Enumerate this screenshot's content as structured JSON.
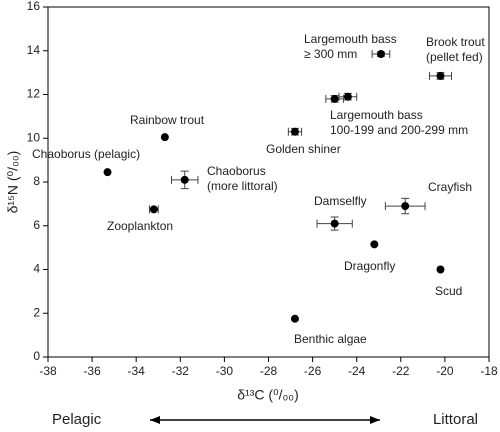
{
  "chart_data": {
    "type": "scatter",
    "x_label": "δ¹³C (⁰/₀₀)",
    "y_label": "δ¹⁵N (⁰/₀₀)",
    "bottom_left": "Pelagic",
    "bottom_right": "Littoral",
    "series": [
      {
        "color": "#000000",
        "x": [
          -35.3,
          -32.7,
          -33.2,
          -31.8,
          -26.8,
          -22.9,
          -20.2,
          -25.0,
          -24.4,
          -25.0,
          -21.8,
          -23.2,
          -20.2,
          -26.8
        ],
        "values": [
          8.45,
          10.05,
          6.75,
          8.1,
          10.3,
          13.85,
          12.85,
          11.8,
          11.9,
          6.1,
          6.9,
          5.15,
          4.0,
          1.75
        ],
        "xerr": [
          null,
          null,
          0.2,
          0.6,
          0.3,
          0.4,
          0.5,
          0.4,
          0.4,
          0.8,
          0.9,
          null,
          null,
          null
        ],
        "yerr": [
          null,
          null,
          null,
          0.4,
          0.15,
          0.1,
          0.15,
          0.15,
          0.15,
          0.3,
          0.35,
          null,
          null,
          null
        ]
      }
    ],
    "annotations": [
      [
        "Chaoborus (pelagic)"
      ],
      [
        "Rainbow trout"
      ],
      [
        "Zooplankton"
      ],
      [
        "Chaoborus",
        "(more littoral)"
      ],
      [
        "Golden shiner"
      ],
      [
        "Largemouth bass",
        "≥ 300 mm"
      ],
      [
        "Brook trout",
        "(pellet fed)"
      ],
      [
        "Largemouth bass",
        "100-199 and 200-299 mm"
      ],
      [
        "Damselfly"
      ],
      [
        "Crayfish"
      ],
      [
        "Dragonfly"
      ],
      [
        "Scud"
      ],
      [
        "Benthic algae"
      ]
    ],
    "xlim": [
      -38,
      -18
    ],
    "ylim": [
      0,
      16
    ],
    "xticks": [
      -38,
      -36,
      -34,
      -32,
      -30,
      -28,
      -26,
      -24,
      -22,
      -20,
      -18
    ],
    "yticks": [
      0,
      2,
      4,
      6,
      8,
      10,
      12,
      14,
      16
    ]
  }
}
